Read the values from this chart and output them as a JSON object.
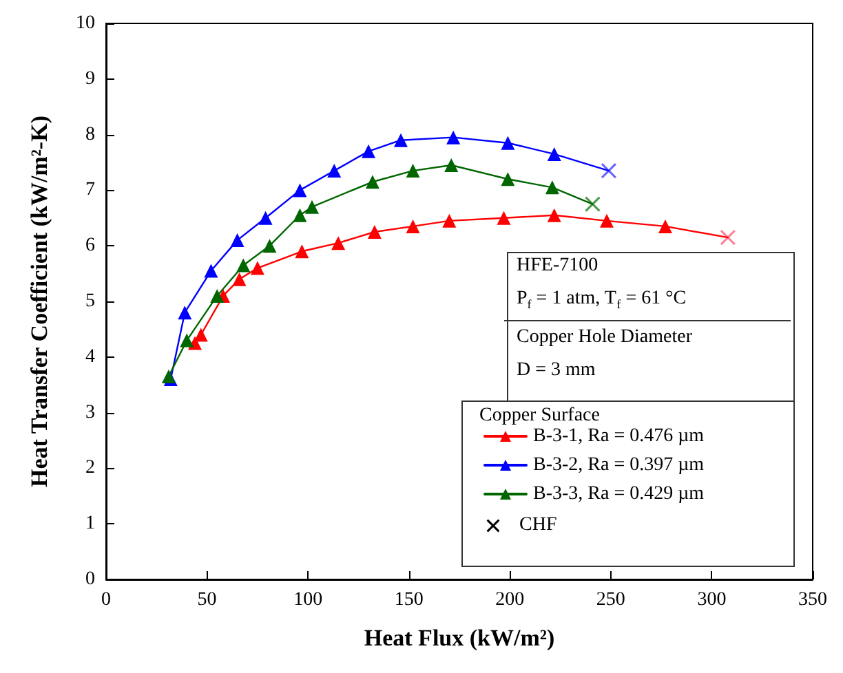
{
  "chart_data": {
    "type": "line",
    "xlabel": "Heat Flux (kW/m²)",
    "ylabel": "Heat Transfer Coefficient (kW/m²-K)",
    "legend_title": "Copper Surface",
    "legend": "bottom right",
    "marker": "triangle",
    "line_style": "solid",
    "grid": false,
    "xlim": [
      0,
      350
    ],
    "xticks": [
      0,
      50,
      100,
      150,
      200,
      250,
      300,
      350
    ],
    "ylim": [
      0,
      10
    ],
    "yticks": [
      0,
      1,
      2,
      3,
      4,
      5,
      6,
      7,
      8,
      9,
      10
    ],
    "annotations": [
      "HFE-7100",
      "P$_{f}$ = 1 atm, T$_{f}$ = 61 °C",
      "Copper Hole Diameter",
      "D = 3 mm",
      "CHF"
    ],
    "series": [
      {
        "name": "B-3-1, Ra = 0.476 µm",
        "color": "#ff0000",
        "x": [
          44,
          47,
          58,
          66,
          75,
          97,
          115,
          133,
          152,
          170,
          197,
          222,
          248,
          277,
          308
        ],
        "values": [
          4.25,
          4.4,
          5.1,
          5.4,
          5.6,
          5.9,
          6.05,
          6.25,
          6.35,
          6.45,
          6.5,
          6.55,
          6.45,
          6.35,
          6.15
        ]
      },
      {
        "name": "B-3-2, Ra = 0.397 µm",
        "color": "#0000ff",
        "x": [
          32,
          39,
          52,
          65,
          79,
          96,
          113,
          130,
          146,
          172,
          199,
          222,
          249
        ],
        "values": [
          3.6,
          4.8,
          5.55,
          6.1,
          6.5,
          7.0,
          7.35,
          7.7,
          7.9,
          7.95,
          7.85,
          7.65,
          7.35
        ]
      },
      {
        "name": "B-3-3, Ra = 0.429 µm",
        "color": "#006600",
        "x": [
          31,
          40,
          55,
          68,
          81,
          96,
          102,
          132,
          152,
          171,
          199,
          221,
          241
        ],
        "values": [
          3.65,
          4.3,
          5.1,
          5.65,
          6.0,
          6.55,
          6.7,
          7.15,
          7.35,
          7.45,
          7.2,
          7.05,
          6.75
        ]
      },
      {
        "type": "scatter",
        "marker": "cross",
        "color": "#000000",
        "x": [
          308,
          249,
          241
        ],
        "values": [
          6.15,
          7.35,
          6.75
        ],
        "colors": [
          "#ff6080",
          "#4040ff",
          "#208020"
        ]
      }
    ]
  }
}
